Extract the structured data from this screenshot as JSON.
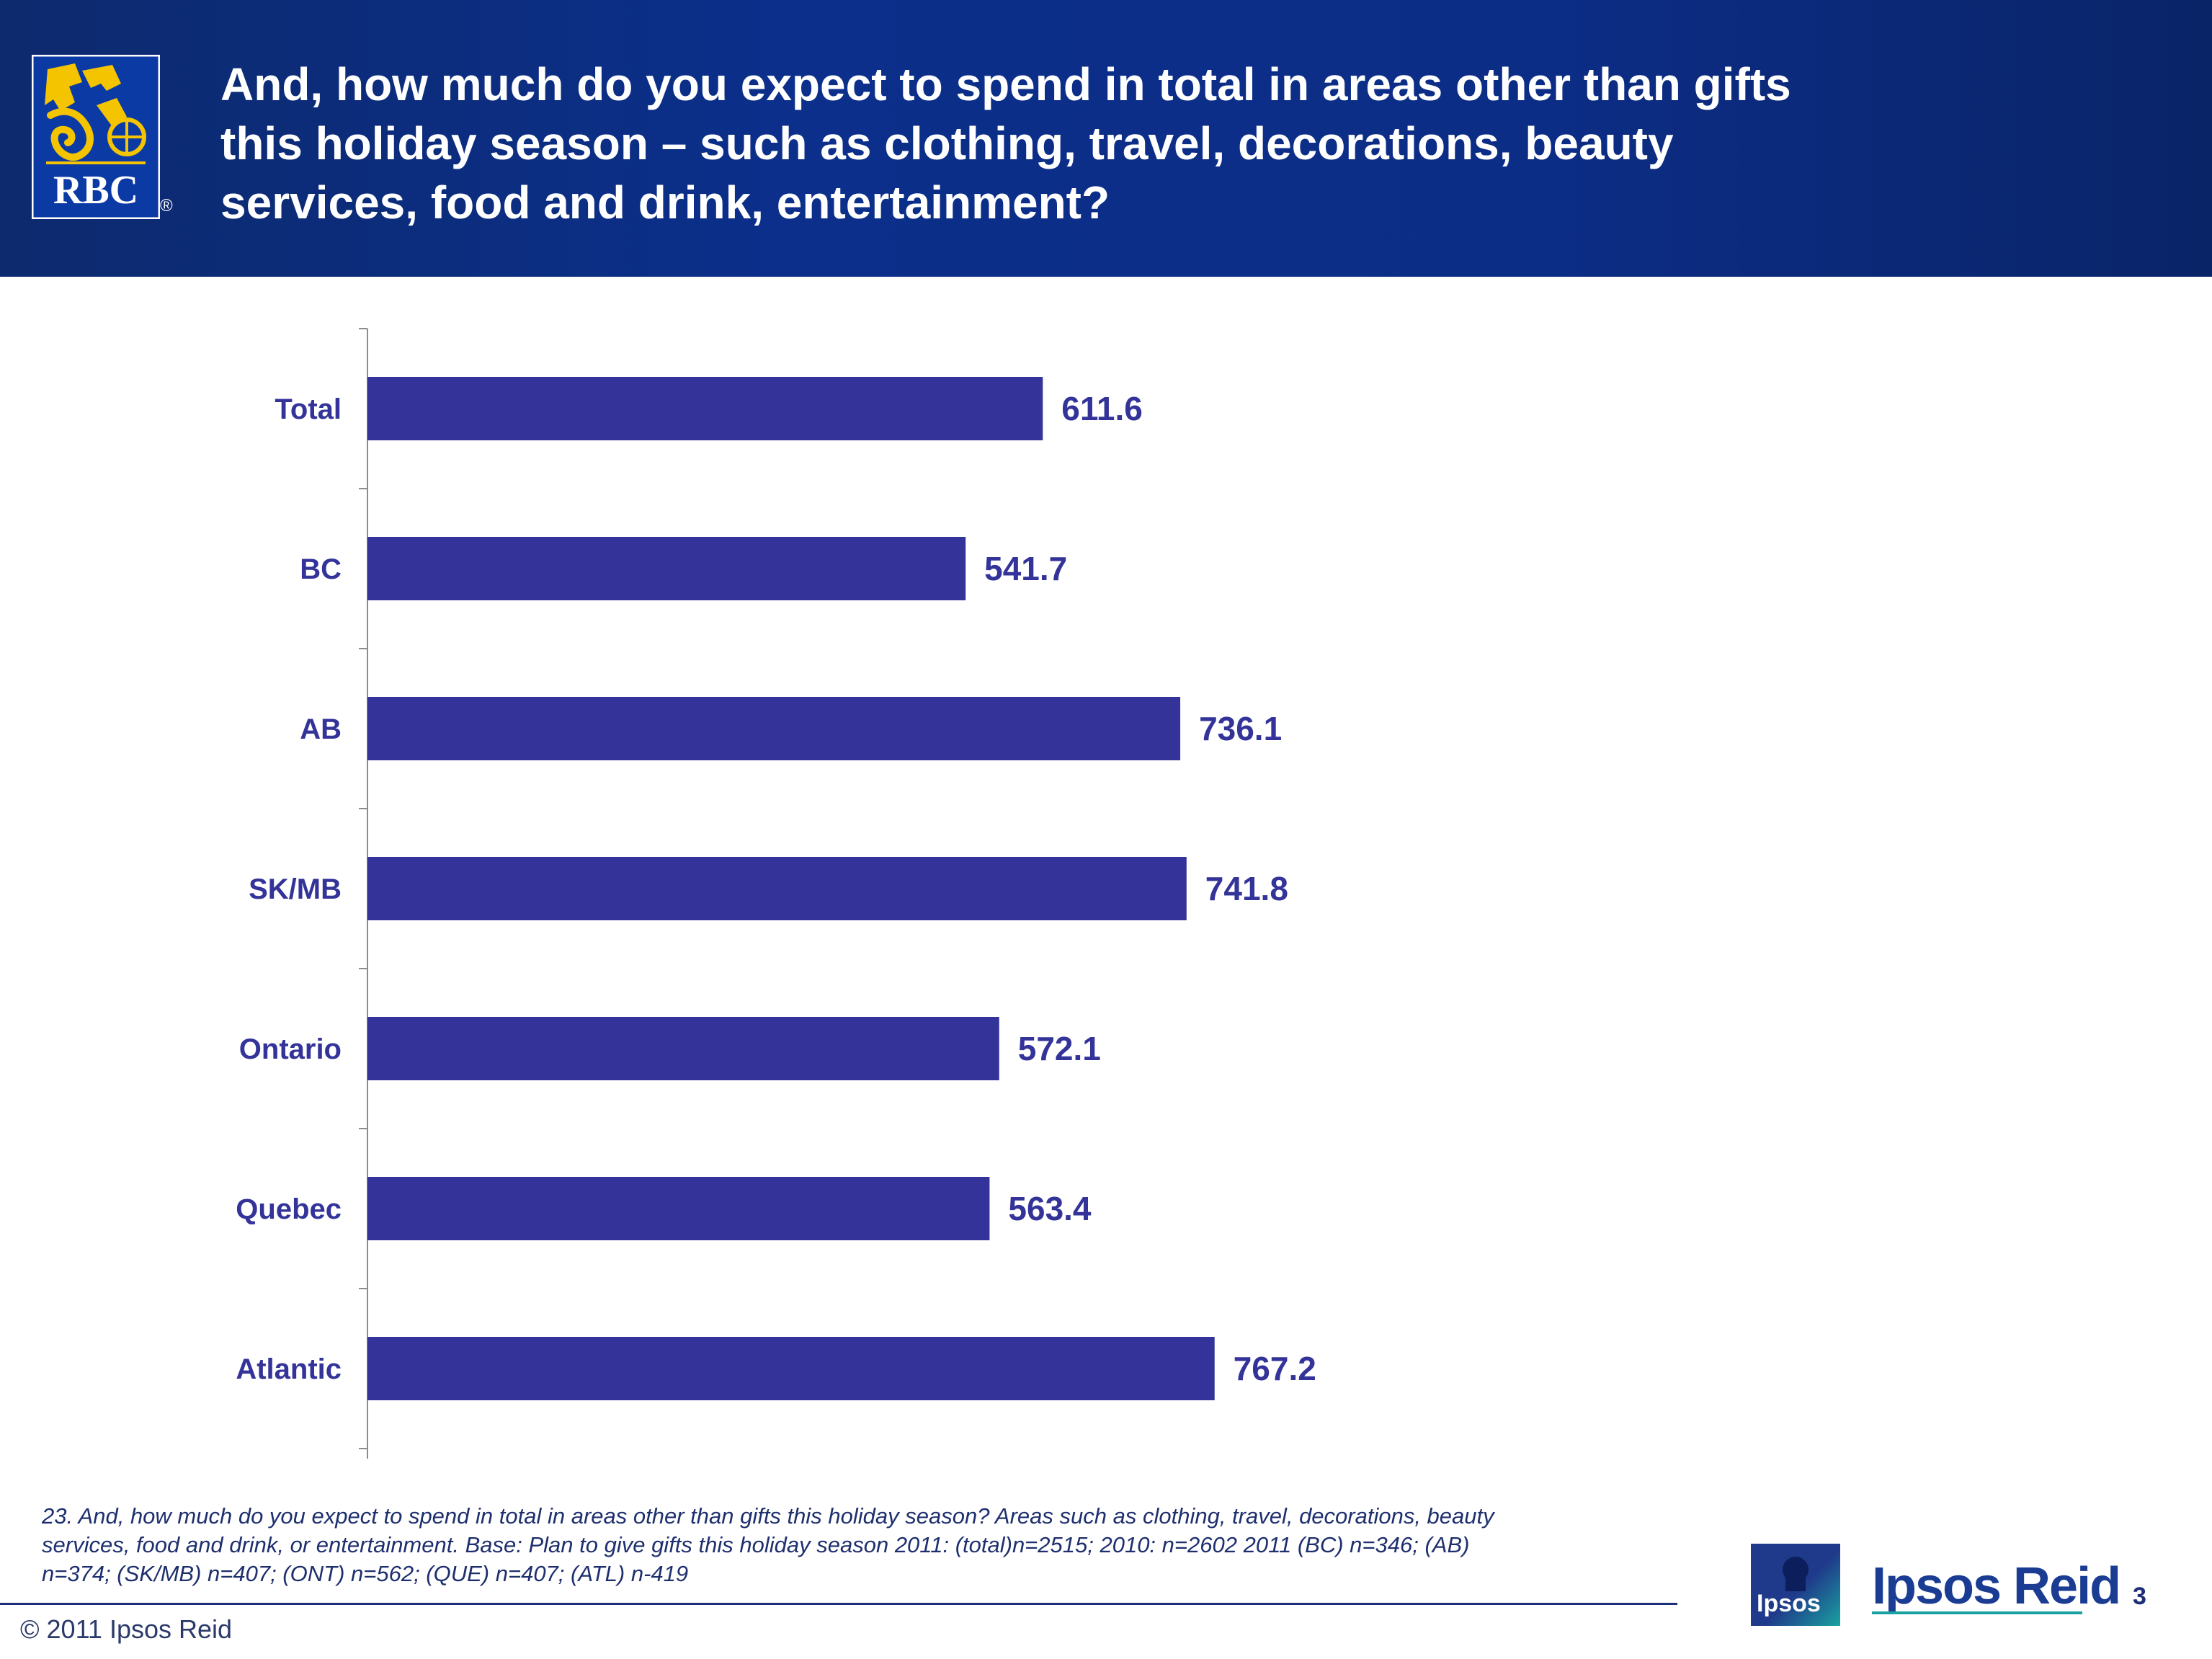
{
  "header": {
    "title_lines": [
      "And, how much do you expect to spend in total in areas other than gifts",
      "this holiday season – such as clothing, travel, decorations, beauty",
      "services, food and drink, entertainment?"
    ],
    "logo_text": "RBC",
    "logo_reg": "®",
    "background_color": "#0b2f8a",
    "logo_color": "#f5c400"
  },
  "chart_data": {
    "type": "bar",
    "orientation": "horizontal",
    "categories": [
      "Total",
      "BC",
      "AB",
      "SK/MB",
      "Ontario",
      "Quebec",
      "Atlantic"
    ],
    "values": [
      611.6,
      541.7,
      736.1,
      741.8,
      572.1,
      563.4,
      767.2
    ],
    "value_labels": [
      "611.6",
      "541.7",
      "736.1",
      "741.8",
      "572.1",
      "563.4",
      "767.2"
    ],
    "xlim": [
      0,
      960
    ],
    "grid": false,
    "legend": "none",
    "bar_color": "#333399",
    "label_color": "#333399"
  },
  "footnote": {
    "lines": [
      "23. And, how much do you expect to spend in total in areas other than gifts this holiday season? Areas such as clothing, travel, decorations, beauty",
      "services, food and drink, or entertainment. Base: Plan to give gifts this holiday season  2011: (total)n=2515; 2010: n=2602 2011 (BC) n=346; (AB)",
      "n=374; (SK/MB) n=407; (ONT) n=562; (QUE) n=407; (ATL) n-419"
    ]
  },
  "footer": {
    "copyright": "© 2011 Ipsos Reid",
    "ipsos_box_label": "Ipsos",
    "brand": "Ipsos Reid",
    "page_number": "3"
  }
}
